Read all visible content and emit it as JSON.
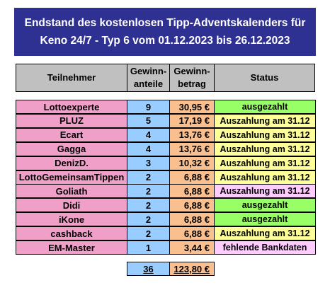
{
  "title": {
    "line1": "Endstand des kostenlosen Tipp-Adventskalenders für",
    "line2": "Keno 24/7 - Typ 6 vom 01.12.2023 bis 26.12.2023"
  },
  "columns": {
    "name": "Teilnehmer",
    "share": "Gewinn-\nanteile",
    "amount": "Gewinn-\nbetrag",
    "status": "Status"
  },
  "colors": {
    "name_bg": "#f0a0c8",
    "share_bg": "#99ccff",
    "amount_bg": "#f9bf8f",
    "paid_bg": "#99ff66",
    "pending_bg": "#ffff99",
    "other_status_bg": "#ffccff",
    "header_bg": "#c0c0c0",
    "banner_bg": "#2e3192"
  },
  "rows": [
    {
      "name": "Lottoexperte",
      "share": "9",
      "amount": "30,95 €",
      "status": "ausgezahlt",
      "status_type": "paid"
    },
    {
      "name": "PLUZ",
      "share": "5",
      "amount": "17,19 €",
      "status": "Auszahlung am 31.12",
      "status_type": "pending"
    },
    {
      "name": "Ecart",
      "share": "4",
      "amount": "13,76 €",
      "status": "Auszahlung am 31.12",
      "status_type": "pending"
    },
    {
      "name": "Gagga",
      "share": "4",
      "amount": "13,76 €",
      "status": "Auszahlung am 31.12",
      "status_type": "pending"
    },
    {
      "name": "DenizD.",
      "share": "3",
      "amount": "10,32 €",
      "status": "Auszahlung am 31.12",
      "status_type": "pending"
    },
    {
      "name": "LottoGemeinsamTippen",
      "share": "2",
      "amount": "6,88 €",
      "status": "Auszahlung am 31.12",
      "status_type": "pending"
    },
    {
      "name": "Goliath",
      "share": "2",
      "amount": "6,88 €",
      "status": "Auszahlung am 31.12",
      "status_type": "other"
    },
    {
      "name": "Didi",
      "share": "2",
      "amount": "6,88 €",
      "status": "ausgezahlt",
      "status_type": "paid"
    },
    {
      "name": "iKone",
      "share": "2",
      "amount": "6,88 €",
      "status": "ausgezahlt",
      "status_type": "paid"
    },
    {
      "name": "cashback",
      "share": "2",
      "amount": "6,88 €",
      "status": "Auszahlung am 31.12",
      "status_type": "pending"
    },
    {
      "name": "EM-Master",
      "share": "1",
      "amount": "3,44 €",
      "status": "fehlende Bankdaten",
      "status_type": "other"
    }
  ],
  "totals": {
    "share": "36",
    "amount": "123,80 €"
  }
}
